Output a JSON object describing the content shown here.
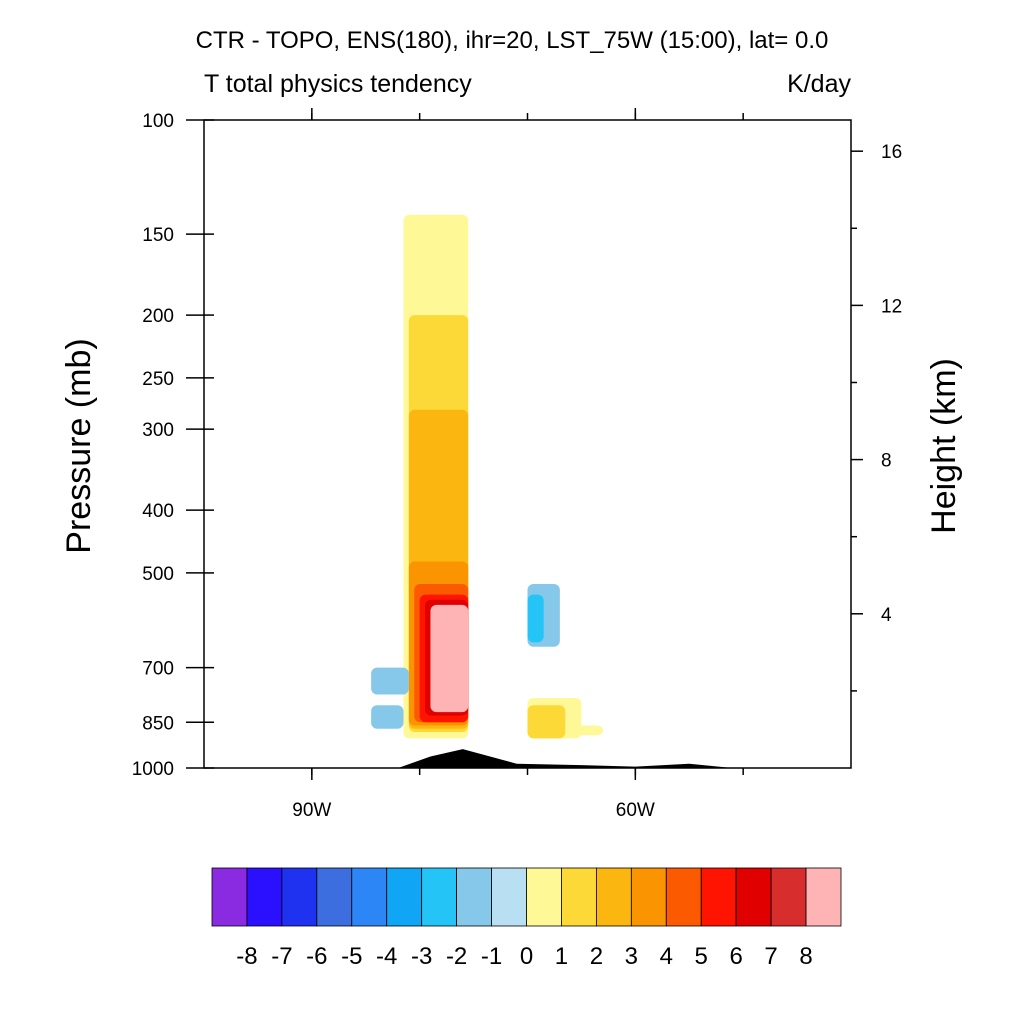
{
  "chart_data": {
    "type": "heatmap",
    "title": "CTR - TOPO, ENS(180), ihr=20, LST_75W (15:00), lat=  0.0",
    "subtitle_left": "T total physics tendency",
    "subtitle_right": "K/day",
    "ylabel": "Pressure (mb)",
    "ylabel_right": "Height (km)",
    "xlabel": "",
    "y_scale": "log",
    "ylim": [
      1000,
      100
    ],
    "xlim": [
      -100,
      -40
    ],
    "y_ticks": [
      {
        "value": 100,
        "label": "100"
      },
      {
        "value": 150,
        "label": "150"
      },
      {
        "value": 200,
        "label": "200"
      },
      {
        "value": 250,
        "label": "250"
      },
      {
        "value": 300,
        "label": "300"
      },
      {
        "value": 400,
        "label": "400"
      },
      {
        "value": 500,
        "label": "500"
      },
      {
        "value": 700,
        "label": "700"
      },
      {
        "value": 850,
        "label": "850"
      },
      {
        "value": 1000,
        "label": "1000"
      }
    ],
    "x_ticks": [
      {
        "value": -90,
        "label": "90W"
      },
      {
        "value": -60,
        "label": "60W"
      }
    ],
    "height_ticks": [
      {
        "value": 4,
        "label": "4"
      },
      {
        "value": 8,
        "label": "8"
      },
      {
        "value": 12,
        "label": "12"
      },
      {
        "value": 16,
        "label": "16"
      }
    ],
    "colorbar": {
      "labels": [
        "-8",
        "-7",
        "-6",
        "-5",
        "-4",
        "-3",
        "-2",
        "-1",
        "0",
        "1",
        "2",
        "3",
        "4",
        "5",
        "6",
        "7",
        "8"
      ],
      "colors": [
        "#8a2be2",
        "#2b0fff",
        "#1e32f0",
        "#3c6ee0",
        "#2d86f5",
        "#10a6f5",
        "#25c4f7",
        "#85c8ea",
        "#b9e0f2",
        "#fef896",
        "#fcd936",
        "#fbb710",
        "#fa9400",
        "#fb5a00",
        "#fe1400",
        "#e10000",
        "#d72d2d",
        "#feb4b4"
      ]
    },
    "regions": [
      {
        "x0": -81.5,
        "x1": -75.5,
        "p0": 140,
        "p1": 900,
        "level": "0"
      },
      {
        "x0": -81,
        "x1": -75.5,
        "p0": 200,
        "p1": 880,
        "level": "1"
      },
      {
        "x0": -81,
        "x1": -75.5,
        "p0": 280,
        "p1": 870,
        "level": "2"
      },
      {
        "x0": -81,
        "x1": -75.5,
        "p0": 480,
        "p1": 860,
        "level": "3"
      },
      {
        "x0": -80.5,
        "x1": -75.5,
        "p0": 520,
        "p1": 850,
        "level": "4"
      },
      {
        "x0": -80,
        "x1": -75.5,
        "p0": 540,
        "p1": 850,
        "level": "5"
      },
      {
        "x0": -79.5,
        "x1": -75.5,
        "p0": 550,
        "p1": 830,
        "level": "6"
      },
      {
        "x0": -79,
        "x1": -75.5,
        "p0": 560,
        "p1": 820,
        "level": "8"
      },
      {
        "x0": -84.5,
        "x1": -81,
        "p0": 700,
        "p1": 770,
        "level": "-1"
      },
      {
        "x0": -84.5,
        "x1": -81.5,
        "p0": 800,
        "p1": 870,
        "level": "-1"
      },
      {
        "x0": -70,
        "x1": -67,
        "p0": 520,
        "p1": 650,
        "level": "-1"
      },
      {
        "x0": -70,
        "x1": -68.5,
        "p0": 540,
        "p1": 640,
        "level": "-2"
      },
      {
        "x0": -70,
        "x1": -65,
        "p0": 780,
        "p1": 900,
        "level": "0"
      },
      {
        "x0": -70,
        "x1": -66.5,
        "p0": 800,
        "p1": 900,
        "level": "1"
      },
      {
        "x0": -66,
        "x1": -63,
        "p0": 860,
        "p1": 890,
        "level": "0"
      }
    ],
    "terrain": [
      {
        "x": -82,
        "p": 1000
      },
      {
        "x": -79,
        "p": 960
      },
      {
        "x": -76,
        "p": 935
      },
      {
        "x": -71,
        "p": 985
      },
      {
        "x": -65,
        "p": 990
      },
      {
        "x": -60,
        "p": 995
      },
      {
        "x": -55,
        "p": 985
      },
      {
        "x": -51,
        "p": 1000
      }
    ]
  }
}
